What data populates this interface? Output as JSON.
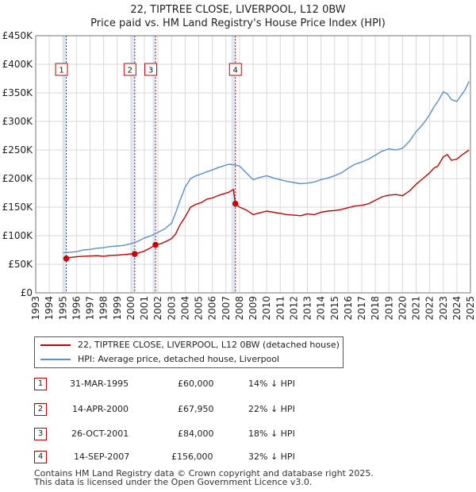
{
  "title_line1": "22, TIPTREE CLOSE, LIVERPOOL, L12 0BW",
  "title_line2": "Price paid vs. HM Land Registry's House Price Index (HPI)",
  "legend": {
    "property": "22, TIPTREE CLOSE, LIVERPOOL, L12 0BW (detached house)",
    "hpi": "HPI: Average price, detached house, Liverpool"
  },
  "colors": {
    "property": "#cc0000",
    "hpi": "#5b8fd0",
    "shade": "#dde8f6",
    "marker": "#cc0000"
  },
  "transactions": [
    {
      "num": "1",
      "date": "31-MAR-1995",
      "price": "£60,000",
      "hpi_diff": "14% ↓ HPI"
    },
    {
      "num": "2",
      "date": "14-APR-2000",
      "price": "£67,950",
      "hpi_diff": "22% ↓ HPI"
    },
    {
      "num": "3",
      "date": "26-OCT-2001",
      "price": "£84,000",
      "hpi_diff": "18% ↓ HPI"
    },
    {
      "num": "4",
      "date": "14-SEP-2007",
      "price": "£156,000",
      "hpi_diff": "32% ↓ HPI"
    }
  ],
  "footer_line1": "Contains HM Land Registry data © Crown copyright and database right 2025.",
  "footer_line2": "This data is licensed under the Open Government Licence v3.0.",
  "chart_data": {
    "type": "line",
    "title": "22, TIPTREE CLOSE, LIVERPOOL, L12 0BW",
    "subtitle": "Price paid vs. HM Land Registry's House Price Index (HPI)",
    "xlabel": "",
    "ylabel": "",
    "xlim": [
      1993,
      2025
    ],
    "ylim": [
      0,
      450000
    ],
    "y_ticks": [
      0,
      50000,
      100000,
      150000,
      200000,
      250000,
      300000,
      350000,
      400000,
      450000
    ],
    "y_tick_labels": [
      "£0",
      "£50K",
      "£100K",
      "£150K",
      "£200K",
      "£250K",
      "£300K",
      "£350K",
      "£400K",
      "£450K"
    ],
    "x_ticks": [
      1993,
      1994,
      1995,
      1996,
      1997,
      1998,
      1999,
      2000,
      2001,
      2002,
      2003,
      2004,
      2005,
      2006,
      2007,
      2008,
      2009,
      2010,
      2011,
      2012,
      2013,
      2014,
      2015,
      2016,
      2017,
      2018,
      2019,
      2020,
      2021,
      2022,
      2023,
      2024,
      2025
    ],
    "grid": true,
    "shaded_ranges": [
      [
        1995.0,
        1995.25
      ],
      [
        2000.0,
        2000.29
      ],
      [
        2001.6,
        2001.82
      ],
      [
        2007.4,
        2007.7
      ]
    ],
    "sale_markers": [
      {
        "label": "1",
        "x": 1995.25,
        "y": 60000
      },
      {
        "label": "2",
        "x": 2000.29,
        "y": 67950
      },
      {
        "label": "3",
        "x": 2001.82,
        "y": 84000
      },
      {
        "label": "4",
        "x": 2007.7,
        "y": 156000
      }
    ],
    "series": [
      {
        "name": "22, TIPTREE CLOSE, LIVERPOOL, L12 0BW (detached house)",
        "x": [
          1995.25,
          1995.5,
          1996,
          1996.5,
          1997,
          1997.5,
          1998,
          1998.5,
          1999,
          1999.5,
          2000,
          2000.29,
          2000.6,
          2001,
          2001.4,
          2001.82,
          2002.2,
          2002.6,
          2003,
          2003.3,
          2003.6,
          2004,
          2004.4,
          2004.8,
          2005.2,
          2005.6,
          2006,
          2006.4,
          2006.8,
          2007.2,
          2007.55,
          2007.7,
          2008,
          2008.5,
          2009,
          2009.5,
          2010,
          2010.5,
          2011,
          2011.5,
          2012,
          2012.5,
          2013,
          2013.5,
          2014,
          2014.5,
          2015,
          2015.5,
          2016,
          2016.5,
          2017,
          2017.5,
          2018,
          2018.5,
          2019,
          2019.5,
          2020,
          2020.5,
          2021,
          2021.5,
          2022,
          2022.3,
          2022.6,
          2023,
          2023.3,
          2023.6,
          2024,
          2024.3,
          2024.6,
          2024.9
        ],
        "y": [
          60000,
          62000,
          63000,
          64000,
          64500,
          65000,
          64000,
          65500,
          66000,
          67000,
          68000,
          67950,
          70000,
          73000,
          78000,
          84000,
          86000,
          90000,
          95000,
          103000,
          118000,
          133000,
          150000,
          155000,
          158000,
          164000,
          166000,
          170000,
          173000,
          176000,
          181000,
          156000,
          150000,
          145000,
          137000,
          140000,
          143000,
          141000,
          139000,
          137000,
          136000,
          135000,
          138000,
          137000,
          141000,
          143000,
          144000,
          146000,
          149000,
          152000,
          153000,
          156000,
          162000,
          168000,
          171000,
          172000,
          170000,
          178000,
          190000,
          200000,
          210000,
          218000,
          222000,
          238000,
          242000,
          232000,
          234000,
          240000,
          245000,
          250000
        ]
      },
      {
        "name": "HPI: Average price, detached house, Liverpool",
        "x": [
          1995,
          1995.5,
          1996,
          1996.5,
          1997,
          1997.5,
          1998,
          1998.5,
          1999,
          1999.5,
          2000,
          2000.5,
          2001,
          2001.5,
          2002,
          2002.5,
          2003,
          2003.3,
          2003.6,
          2004,
          2004.4,
          2004.8,
          2005.2,
          2005.6,
          2006,
          2006.4,
          2006.8,
          2007.2,
          2007.6,
          2008,
          2008.5,
          2009,
          2009.5,
          2010,
          2010.5,
          2011,
          2011.5,
          2012,
          2012.5,
          2013,
          2013.5,
          2014,
          2014.5,
          2015,
          2015.5,
          2016,
          2016.5,
          2017,
          2017.5,
          2018,
          2018.5,
          2019,
          2019.5,
          2020,
          2020.5,
          2021,
          2021.5,
          2022,
          2022.3,
          2022.6,
          2023,
          2023.3,
          2023.6,
          2024,
          2024.3,
          2024.6,
          2024.9
        ],
        "y": [
          70000,
          71000,
          72000,
          75000,
          76000,
          78000,
          79000,
          81000,
          82000,
          83000,
          86000,
          90000,
          96000,
          100000,
          106000,
          112000,
          122000,
          140000,
          160000,
          185000,
          200000,
          205000,
          208000,
          212000,
          215000,
          219000,
          222000,
          225000,
          224000,
          222000,
          210000,
          198000,
          202000,
          205000,
          201000,
          198000,
          195000,
          193000,
          191000,
          192000,
          194000,
          198000,
          201000,
          205000,
          210000,
          218000,
          225000,
          229000,
          234000,
          241000,
          248000,
          252000,
          250000,
          253000,
          265000,
          282000,
          295000,
          312000,
          325000,
          335000,
          352000,
          348000,
          338000,
          335000,
          345000,
          355000,
          370000
        ]
      }
    ]
  }
}
